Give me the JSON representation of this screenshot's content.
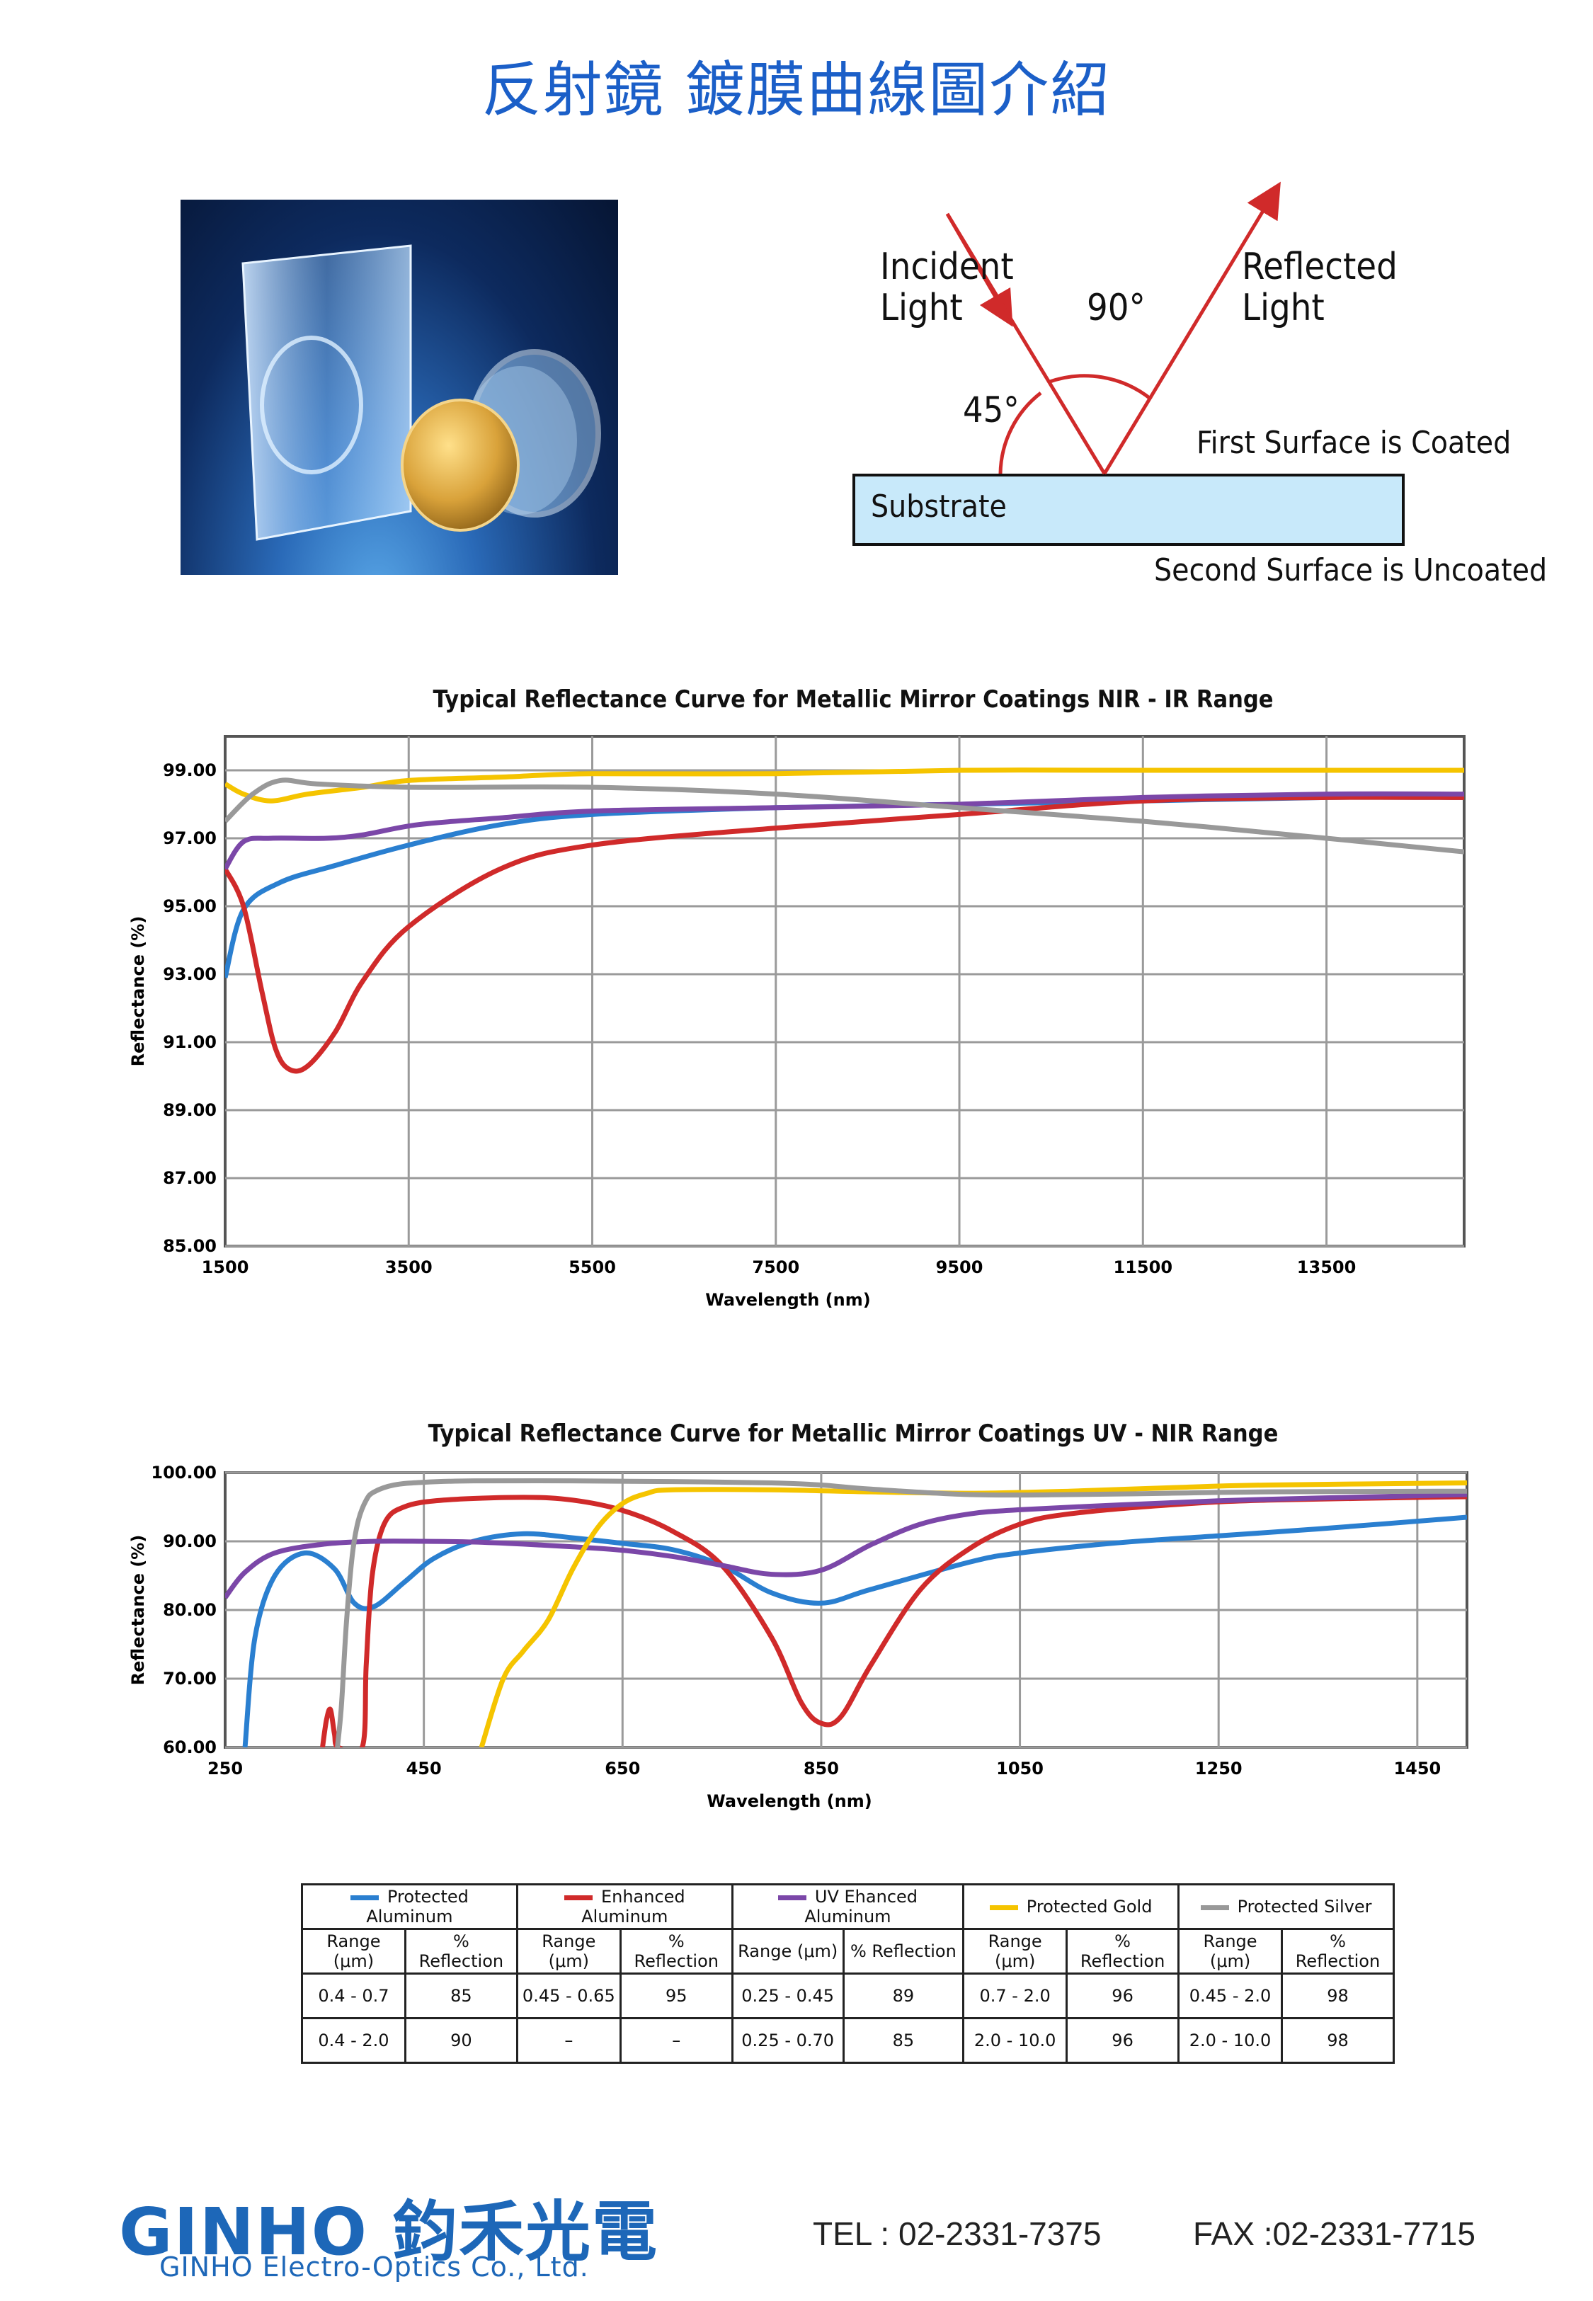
{
  "page": {
    "title": "反射鏡 鍍膜曲線圖介紹"
  },
  "diagram": {
    "incident": [
      "Incident",
      "Light"
    ],
    "reflected": [
      "Reflected",
      "Light"
    ],
    "angle_90": "90°",
    "angle_45": "45°",
    "first_surface": "First Surface is Coated",
    "substrate": "Substrate",
    "second_surface": "Second Surface is Uncoated"
  },
  "colors": {
    "protected_aluminum": "#2a7fd0",
    "enhanced_aluminum": "#d02a2a",
    "uv_enhanced_aluminum": "#7b47a8",
    "protected_gold": "#f5c400",
    "protected_silver": "#999999"
  },
  "chart_data": [
    {
      "type": "line",
      "title": "Typical Reflectance Curve for Metallic Mirror Coatings NIR - IR Range",
      "xlabel": "Wavelength (nm)",
      "ylabel": "Reflectance (%)",
      "xlim": [
        1500,
        15000
      ],
      "ylim": [
        85,
        100
      ],
      "xticks": [
        "1500",
        "3500",
        "5500",
        "7500",
        "9500",
        "11500",
        "13500"
      ],
      "yticks": [
        "99.00",
        "97.00",
        "95.00",
        "93.00",
        "91.00",
        "89.00",
        "87.00",
        "85.00"
      ],
      "grid": true,
      "series": [
        {
          "key": "protected_aluminum",
          "x": [
            1500,
            1700,
            2100,
            2700,
            3500,
            4500,
            5500,
            7500,
            9500,
            11500,
            13500,
            15000
          ],
          "y": [
            92.9,
            94.9,
            95.7,
            96.2,
            96.8,
            97.4,
            97.7,
            97.9,
            98.0,
            98.1,
            98.2,
            98.2
          ]
        },
        {
          "key": "enhanced_aluminum",
          "x": [
            1500,
            1700,
            1900,
            2050,
            2200,
            2400,
            2700,
            3000,
            3500,
            4500,
            5500,
            7500,
            9500,
            11500,
            13500,
            15000
          ],
          "y": [
            96.1,
            95.0,
            92.5,
            90.8,
            90.2,
            90.3,
            91.3,
            92.8,
            94.4,
            96.1,
            96.8,
            97.3,
            97.7,
            98.1,
            98.2,
            98.2
          ]
        },
        {
          "key": "uv_enhanced_aluminum",
          "x": [
            1500,
            1700,
            2000,
            2600,
            3000,
            3600,
            4500,
            5500,
            7500,
            9500,
            11500,
            13500,
            15000
          ],
          "y": [
            96.1,
            96.9,
            97.0,
            97.0,
            97.1,
            97.4,
            97.6,
            97.8,
            97.9,
            98.0,
            98.2,
            98.3,
            98.3
          ]
        },
        {
          "key": "protected_gold",
          "x": [
            1500,
            1700,
            2000,
            2400,
            3000,
            3500,
            4500,
            5500,
            7500,
            9500,
            11500,
            13500,
            15000
          ],
          "y": [
            98.6,
            98.3,
            98.1,
            98.3,
            98.5,
            98.7,
            98.8,
            98.9,
            98.9,
            99.0,
            99.0,
            99.0,
            99.0
          ]
        },
        {
          "key": "protected_silver",
          "x": [
            1500,
            1800,
            2100,
            2500,
            3500,
            5500,
            7500,
            9500,
            11500,
            13500,
            15000
          ],
          "y": [
            97.5,
            98.3,
            98.7,
            98.6,
            98.5,
            98.5,
            98.3,
            97.9,
            97.5,
            97.0,
            96.6
          ]
        }
      ]
    },
    {
      "type": "line",
      "title": "Typical Reflectance Curve for Metallic Mirror Coatings UV - NIR Range",
      "xlabel": "Wavelength (nm)",
      "ylabel": "Reflectance (%)",
      "xlim": [
        250,
        1500
      ],
      "ylim": [
        60,
        100
      ],
      "xticks": [
        "250",
        "450",
        "650",
        "850",
        "1050",
        "1250",
        "1450"
      ],
      "yticks": [
        "100.00",
        "90.00",
        "80.00",
        "70.00",
        "60.00"
      ],
      "grid": true,
      "series": [
        {
          "key": "protected_aluminum",
          "x": [
            270,
            280,
            300,
            330,
            360,
            380,
            400,
            430,
            460,
            500,
            550,
            600,
            650,
            700,
            750,
            800,
            850,
            900,
            1000,
            1050,
            1150,
            1250,
            1350,
            1500
          ],
          "y": [
            60,
            76,
            85,
            88.3,
            86,
            81,
            80.5,
            84,
            87.5,
            90,
            91.1,
            90.5,
            89.7,
            88.8,
            86.5,
            82.5,
            81,
            83,
            87,
            88.3,
            89.8,
            90.8,
            91.8,
            93.5
          ]
        },
        {
          "key": "enhanced_aluminum",
          "x": [
            348,
            352,
            356,
            360,
            364,
            388,
            392,
            398,
            410,
            430,
            470,
            550,
            600,
            650,
            700,
            750,
            800,
            830,
            850,
            870,
            900,
            950,
            1000,
            1050,
            1100,
            1200,
            1300,
            1500
          ],
          "y": [
            60,
            64,
            65.5,
            62,
            60,
            60,
            72,
            85,
            92.5,
            95,
            96,
            96.4,
            96,
            94.5,
            91.5,
            86.5,
            76,
            66.5,
            63.5,
            64.5,
            72,
            83,
            89,
            92.5,
            94,
            95.3,
            96,
            96.5
          ]
        },
        {
          "key": "uv_enhanced_aluminum",
          "x": [
            250,
            270,
            300,
            350,
            400,
            450,
            500,
            550,
            600,
            650,
            700,
            750,
            800,
            850,
            900,
            950,
            1000,
            1050,
            1150,
            1250,
            1350,
            1500
          ],
          "y": [
            81.8,
            85.5,
            88.3,
            89.6,
            90,
            90,
            89.9,
            89.6,
            89.2,
            88.7,
            87.8,
            86.5,
            85.2,
            85.8,
            89.5,
            92.5,
            94,
            94.6,
            95.3,
            95.9,
            96.3,
            96.8
          ]
        },
        {
          "key": "protected_gold",
          "x": [
            508,
            530,
            550,
            575,
            600,
            625,
            650,
            675,
            700,
            800,
            900,
            1000,
            1100,
            1200,
            1300,
            1500
          ],
          "y": [
            60,
            70,
            74,
            78.5,
            86,
            92,
            95.5,
            97,
            97.5,
            97.5,
            97.2,
            97,
            97.3,
            97.8,
            98.2,
            98.5
          ]
        },
        {
          "key": "protected_silver",
          "x": [
            363,
            367,
            372,
            378,
            384,
            392,
            400,
            420,
            450,
            500,
            600,
            700,
            800,
            850,
            900,
            1000,
            1100,
            1200,
            1300,
            1500
          ],
          "y": [
            60,
            66,
            78,
            88,
            93,
            96,
            97.2,
            98.2,
            98.6,
            98.8,
            98.8,
            98.7,
            98.5,
            98.2,
            97.6,
            96.8,
            96.8,
            97,
            97.2,
            97.3
          ]
        }
      ]
    }
  ],
  "legend_table": {
    "coatings": [
      {
        "key": "protected_aluminum",
        "name": "Protected Aluminum"
      },
      {
        "key": "enhanced_aluminum",
        "name": "Enhanced Aluminum"
      },
      {
        "key": "uv_enhanced_aluminum",
        "name": "UV Ehanced Aluminum"
      },
      {
        "key": "protected_gold",
        "name": "Protected Gold"
      },
      {
        "key": "protected_silver",
        "name": "Protected Silver"
      }
    ],
    "header": [
      "Range (μm)",
      "% Reflection",
      "Range (μm)",
      "% Reflection",
      "Range (μm)",
      "% Reflection",
      "Range (μm)",
      "% Reflection",
      "Range (μm)",
      "% Reflection"
    ],
    "rows": [
      [
        "0.4 - 0.7",
        "85",
        "0.45 - 0.65",
        "95",
        "0.25 - 0.45",
        "89",
        "0.7 - 2.0",
        "96",
        "0.45 - 2.0",
        "98"
      ],
      [
        "0.4 - 2.0",
        "90",
        "–",
        "–",
        "0.25 - 0.70",
        "85",
        "2.0 - 10.0",
        "96",
        "2.0 - 10.0",
        "98"
      ]
    ]
  },
  "footer": {
    "logo": "GINHO 鈞禾光電",
    "company": "GINHO Electro-Optics Co., Ltd.",
    "tel": "TEL : 02-2331-7375",
    "fax": "FAX :02-2331-7715"
  }
}
